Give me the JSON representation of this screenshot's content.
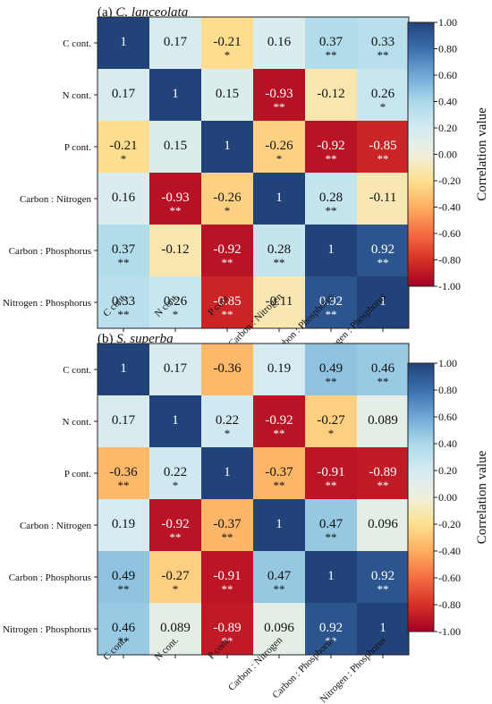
{
  "chart_data": [
    {
      "type": "heatmap",
      "panel_label": "(a)",
      "title_species": "C. lanceolata",
      "rows": [
        "C cont.",
        "N cont.",
        "P cont.",
        "Carbon : Nitrogen",
        "Carbon : Phosphorus",
        "Nitrogen : Phosphorus"
      ],
      "columns": [
        "C cont.",
        "N cont.",
        "P cont.",
        "Carbon : Nitrogen",
        "Carbon : Phosphorus",
        "Nitrogen : Phosphorus"
      ],
      "values": [
        [
          1,
          0.17,
          -0.21,
          0.16,
          0.37,
          0.33
        ],
        [
          0.17,
          1,
          0.15,
          -0.93,
          -0.12,
          0.26
        ],
        [
          -0.21,
          0.15,
          1,
          -0.26,
          -0.92,
          -0.85
        ],
        [
          0.16,
          -0.93,
          -0.26,
          1,
          0.28,
          -0.11
        ],
        [
          0.37,
          -0.12,
          -0.92,
          0.28,
          1,
          0.92
        ],
        [
          0.33,
          0.26,
          -0.85,
          -0.11,
          0.92,
          1
        ]
      ],
      "value_labels": [
        [
          "1",
          "0.17",
          "-0.21",
          "0.16",
          "0.37",
          "0.33"
        ],
        [
          "0.17",
          "1",
          "0.15",
          "-0.93",
          "-0.12",
          "0.26"
        ],
        [
          "-0.21",
          "0.15",
          "1",
          "-0.26",
          "-0.92",
          "-0.85"
        ],
        [
          "0.16",
          "-0.93",
          "-0.26",
          "1",
          "0.28",
          "-0.11"
        ],
        [
          "0.37",
          "-0.12",
          "-0.92",
          "0.28",
          "1",
          "0.92"
        ],
        [
          "0.33",
          "0.26",
          "-0.85",
          "-0.11",
          "0.92",
          "1"
        ]
      ],
      "significance": [
        [
          "",
          "",
          "*",
          "",
          "**",
          "**"
        ],
        [
          "",
          "",
          "",
          "**",
          "",
          "*"
        ],
        [
          "*",
          "",
          "",
          "*",
          "**",
          "**"
        ],
        [
          "",
          "**",
          "*",
          "",
          "**",
          ""
        ],
        [
          "**",
          "",
          "**",
          "**",
          "",
          "**"
        ],
        [
          "**",
          "*",
          "**",
          "",
          "**",
          ""
        ]
      ],
      "colorbar": {
        "label": "Correlation value",
        "range": [
          -1,
          1
        ],
        "ticks": [
          "1.00",
          "0.80",
          "0.60",
          "0.40",
          "0.20",
          "0.00",
          "-0.20",
          "-0.40",
          "-0.60",
          "-0.80",
          "-1.00"
        ],
        "colors": [
          "#a50026",
          "#d73027",
          "#f46d43",
          "#fdae61",
          "#fee090",
          "#f0f0dc",
          "#d4ebf2",
          "#abd9e9",
          "#6fa8d6",
          "#3b6fad",
          "#22437a"
        ]
      }
    },
    {
      "type": "heatmap",
      "panel_label": "(b)",
      "title_species": "S. superba",
      "rows": [
        "C cont.",
        "N cont.",
        "P cont.",
        "Carbon : Nitrogen",
        "Carbon : Phosphorus",
        "Nitrogen : Phosphorus"
      ],
      "columns": [
        "C cont.",
        "N cont.",
        "P cont.",
        "Carbon : Nitrogen",
        "Carbon : Phosphorus",
        "Nitrogen : Phosphorus"
      ],
      "values": [
        [
          1,
          0.17,
          -0.36,
          0.19,
          0.49,
          0.46
        ],
        [
          0.17,
          1,
          0.22,
          -0.92,
          -0.27,
          0.089
        ],
        [
          -0.36,
          0.22,
          1,
          -0.37,
          -0.91,
          -0.89
        ],
        [
          0.19,
          -0.92,
          -0.37,
          1,
          0.47,
          0.096
        ],
        [
          0.49,
          -0.27,
          -0.91,
          0.47,
          1,
          0.92
        ],
        [
          0.46,
          0.089,
          -0.89,
          0.096,
          0.92,
          1
        ]
      ],
      "value_labels": [
        [
          "1",
          "0.17",
          "-0.36",
          "0.19",
          "0.49",
          "0.46"
        ],
        [
          "0.17",
          "1",
          "0.22",
          "-0.92",
          "-0.27",
          "0.089"
        ],
        [
          "-0.36",
          "0.22",
          "1",
          "-0.37",
          "-0.91",
          "-0.89"
        ],
        [
          "0.19",
          "-0.92",
          "-0.37",
          "1",
          "0.47",
          "0.096"
        ],
        [
          "0.49",
          "-0.27",
          "-0.91",
          "0.47",
          "1",
          "0.92"
        ],
        [
          "0.46",
          "0.089",
          "-0.89",
          "0.096",
          "0.92",
          "1"
        ]
      ],
      "significance": [
        [
          "",
          "",
          "",
          "",
          "**",
          "**"
        ],
        [
          "",
          "",
          "*",
          "**",
          "*",
          ""
        ],
        [
          "**",
          "*",
          "",
          "**",
          "**",
          "**"
        ],
        [
          "",
          "**",
          "**",
          "",
          "**",
          ""
        ],
        [
          "**",
          "*",
          "**",
          "**",
          "",
          "**"
        ],
        [
          "**",
          "",
          "**",
          "",
          "**",
          ""
        ]
      ],
      "colorbar": {
        "label": "Correlation value",
        "range": [
          -1,
          1
        ],
        "ticks": [
          "1.00",
          "0.80",
          "0.60",
          "0.40",
          "0.20",
          "0.00",
          "-0.20",
          "-0.40",
          "-0.60",
          "-0.80",
          "-1.00"
        ],
        "colors": [
          "#a50026",
          "#d73027",
          "#f46d43",
          "#fdae61",
          "#fee090",
          "#f0f0dc",
          "#d4ebf2",
          "#abd9e9",
          "#6fa8d6",
          "#3b6fad",
          "#22437a"
        ]
      }
    }
  ]
}
